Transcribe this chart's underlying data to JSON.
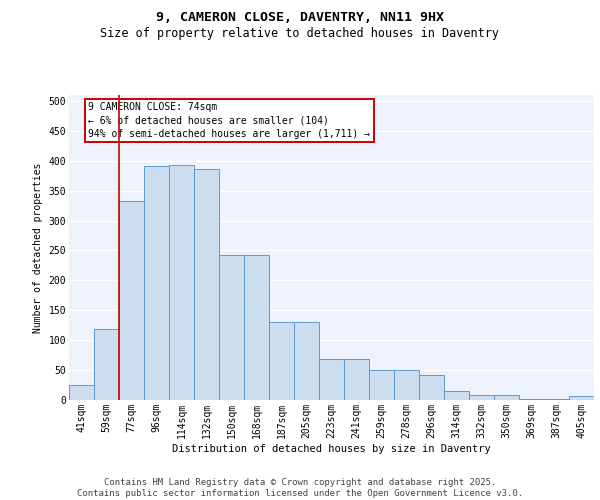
{
  "title": "9, CAMERON CLOSE, DAVENTRY, NN11 9HX",
  "subtitle": "Size of property relative to detached houses in Daventry",
  "xlabel": "Distribution of detached houses by size in Daventry",
  "ylabel": "Number of detached properties",
  "categories": [
    "41sqm",
    "59sqm",
    "77sqm",
    "96sqm",
    "114sqm",
    "132sqm",
    "150sqm",
    "168sqm",
    "187sqm",
    "205sqm",
    "223sqm",
    "241sqm",
    "259sqm",
    "278sqm",
    "296sqm",
    "314sqm",
    "332sqm",
    "350sqm",
    "369sqm",
    "387sqm",
    "405sqm"
  ],
  "values": [
    25,
    118,
    332,
    392,
    393,
    386,
    243,
    243,
    131,
    131,
    68,
    68,
    50,
    50,
    41,
    15,
    9,
    9,
    2,
    2,
    6
  ],
  "bar_color": "#ccddf0",
  "bar_edge_color": "#5b9bd5",
  "vline_x": 1.5,
  "vline_color": "#cc0000",
  "annotation_text": "9 CAMERON CLOSE: 74sqm\n← 6% of detached houses are smaller (104)\n94% of semi-detached houses are larger (1,711) →",
  "annotation_box_color": "#cc0000",
  "ylim": [
    0,
    510
  ],
  "yticks": [
    0,
    50,
    100,
    150,
    200,
    250,
    300,
    350,
    400,
    450,
    500
  ],
  "footer": "Contains HM Land Registry data © Crown copyright and database right 2025.\nContains public sector information licensed under the Open Government Licence v3.0.",
  "bg_color": "#eef2fa",
  "grid_color": "#ffffff",
  "title_fontsize": 9.5,
  "subtitle_fontsize": 8.5,
  "axis_fontsize": 7,
  "tick_fontsize": 7,
  "footer_fontsize": 6.5,
  "annotation_fontsize": 7
}
